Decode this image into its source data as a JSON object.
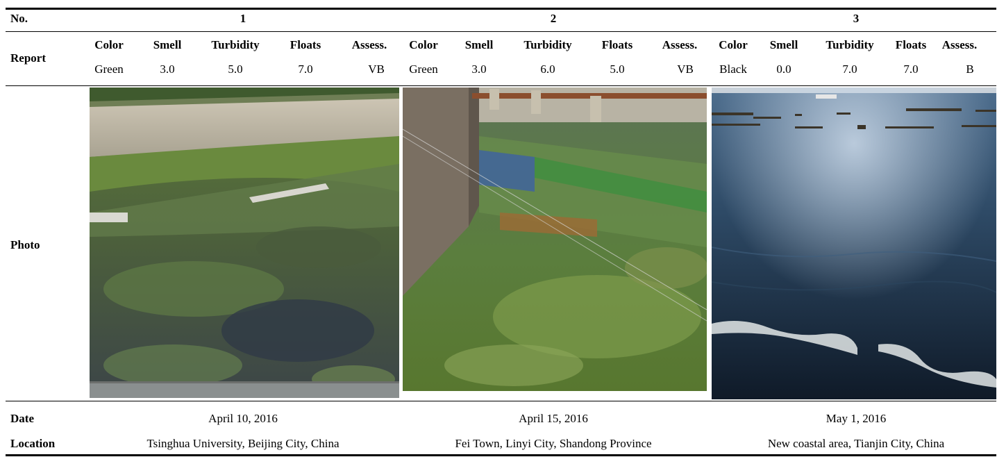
{
  "row_labels": {
    "no": "No.",
    "report": "Report",
    "photo": "Photo",
    "date": "Date",
    "location": "Location"
  },
  "sites": [
    {
      "number": "1",
      "headers": [
        "Color",
        "Smell",
        "Turbidity",
        "Floats",
        "Assess."
      ],
      "values": [
        "Green",
        "3.0",
        "5.0",
        "7.0",
        "VB"
      ],
      "date": "April 10, 2016",
      "location": "Tsinghua University, Beijing City, China"
    },
    {
      "number": "2",
      "headers": [
        "Color",
        "Smell",
        "Turbidity",
        "Floats",
        "Assess."
      ],
      "values": [
        "Green",
        "3.0",
        "6.0",
        "5.0",
        "VB"
      ],
      "date": "April 15, 2016",
      "location": "Fei Town, Linyi City, Shandong Province"
    },
    {
      "number": "3",
      "headers": [
        "Color",
        "Smell",
        "Turbidity",
        "Floats",
        "Assess."
      ],
      "values": [
        "Black",
        "0.0",
        "7.0",
        "7.0",
        "B"
      ],
      "date": "May 1, 2016",
      "location": "New coastal area, Tianjin City, China"
    }
  ]
}
